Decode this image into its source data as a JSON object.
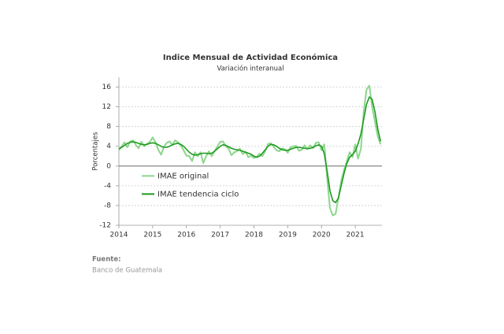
{
  "chart_data": {
    "type": "line",
    "title": "Indice Mensual de Actividad Económica",
    "subtitle": "Variación interanual",
    "ylabel": "Porcentajes",
    "source_label": "Fuente:",
    "source": "Banco de Guatemala",
    "x": [
      2014,
      2014.083,
      2014.167,
      2014.25,
      2014.333,
      2014.417,
      2014.5,
      2014.583,
      2014.667,
      2014.75,
      2014.833,
      2014.917,
      2015,
      2015.083,
      2015.167,
      2015.25,
      2015.333,
      2015.417,
      2015.5,
      2015.583,
      2015.667,
      2015.75,
      2015.833,
      2015.917,
      2016,
      2016.083,
      2016.167,
      2016.25,
      2016.333,
      2016.417,
      2016.5,
      2016.583,
      2016.667,
      2016.75,
      2016.833,
      2016.917,
      2017,
      2017.083,
      2017.167,
      2017.25,
      2017.333,
      2017.417,
      2017.5,
      2017.583,
      2017.667,
      2017.75,
      2017.833,
      2017.917,
      2018,
      2018.083,
      2018.167,
      2018.25,
      2018.333,
      2018.417,
      2018.5,
      2018.583,
      2018.667,
      2018.75,
      2018.833,
      2018.917,
      2019,
      2019.083,
      2019.167,
      2019.25,
      2019.333,
      2019.417,
      2019.5,
      2019.583,
      2019.667,
      2019.75,
      2019.833,
      2019.917,
      2020,
      2020.083,
      2020.167,
      2020.25,
      2020.333,
      2020.417,
      2020.5,
      2020.583,
      2020.667,
      2020.75,
      2020.833,
      2020.917,
      2021,
      2021.083,
      2021.167,
      2021.25,
      2021.333,
      2021.417,
      2021.5,
      2021.583,
      2021.667,
      2021.75
    ],
    "series": [
      {
        "name": "IMAE original",
        "color": "#8cd68c",
        "width": 2,
        "values": [
          3.2,
          4.0,
          4.8,
          3.8,
          5.0,
          5.2,
          4.3,
          3.6,
          4.9,
          4.0,
          4.5,
          4.9,
          5.8,
          4.8,
          3.3,
          2.3,
          3.9,
          4.7,
          5.0,
          4.3,
          5.2,
          4.8,
          4.2,
          3.2,
          2.1,
          2.0,
          1.0,
          2.8,
          2.0,
          2.8,
          0.6,
          2.0,
          3.0,
          2.0,
          3.0,
          4.0,
          4.9,
          5.0,
          4.0,
          3.5,
          2.2,
          2.8,
          3.0,
          3.5,
          2.4,
          2.9,
          1.8,
          2.1,
          1.6,
          1.9,
          2.5,
          2.0,
          3.0,
          4.5,
          4.6,
          3.9,
          3.2,
          3.0,
          3.6,
          3.4,
          2.7,
          3.8,
          4.0,
          4.1,
          3.1,
          3.3,
          4.2,
          3.5,
          4.2,
          3.6,
          4.7,
          4.8,
          3.2,
          4.4,
          -2.5,
          -8.5,
          -10.0,
          -9.7,
          -6.5,
          -3.0,
          -0.8,
          1.0,
          2.8,
          1.8,
          4.4,
          1.5,
          3.5,
          11.0,
          15.5,
          16.3,
          12.0,
          9.0,
          6.0,
          4.4
        ]
      },
      {
        "name": "IMAE tendencia ciclo",
        "color": "#1f9a1f",
        "width": 1.6,
        "values": [
          3.5,
          3.8,
          4.2,
          4.6,
          4.8,
          4.9,
          4.8,
          4.6,
          4.4,
          4.3,
          4.4,
          4.6,
          4.7,
          4.6,
          4.3,
          4.0,
          3.8,
          3.8,
          4.0,
          4.3,
          4.5,
          4.6,
          4.4,
          4.0,
          3.4,
          2.8,
          2.4,
          2.2,
          2.3,
          2.5,
          2.6,
          2.6,
          2.5,
          2.6,
          3.0,
          3.5,
          4.0,
          4.3,
          4.2,
          3.9,
          3.6,
          3.4,
          3.3,
          3.2,
          3.0,
          2.8,
          2.6,
          2.4,
          2.0,
          1.8,
          2.0,
          2.6,
          3.3,
          4.0,
          4.4,
          4.3,
          4.0,
          3.6,
          3.3,
          3.2,
          3.2,
          3.4,
          3.6,
          3.8,
          3.8,
          3.7,
          3.6,
          3.5,
          3.6,
          3.8,
          4.1,
          4.3,
          4.0,
          2.5,
          -1.0,
          -5.0,
          -7.0,
          -7.4,
          -6.5,
          -4.0,
          -1.5,
          0.5,
          1.8,
          2.3,
          3.0,
          4.5,
          6.5,
          9.5,
          12.5,
          14.0,
          13.5,
          11.0,
          7.5,
          5.0
        ]
      }
    ],
    "xlim": [
      2014,
      2021.79
    ],
    "xticks": [
      2014,
      2015,
      2016,
      2017,
      2018,
      2019,
      2020,
      2021
    ],
    "ylim": [
      -12,
      18
    ],
    "yticks": [
      16,
      12,
      8,
      4,
      0,
      -4,
      -8,
      -12
    ],
    "grid": true,
    "legend": "lower left"
  }
}
